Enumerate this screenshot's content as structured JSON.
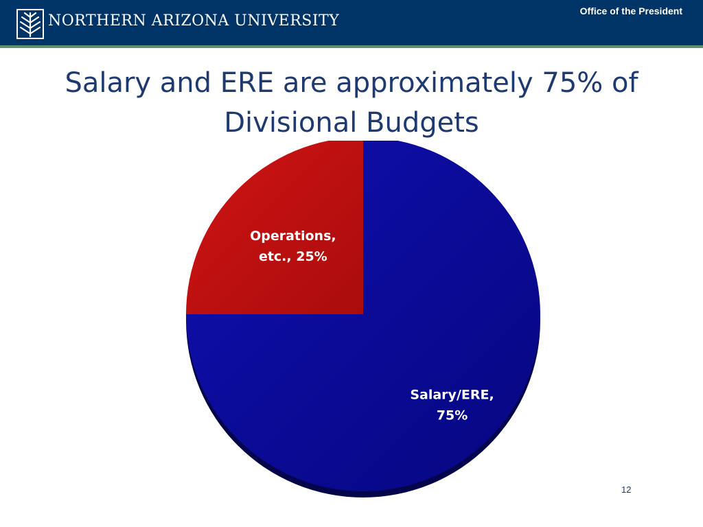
{
  "header": {
    "university": "NORTHERN ARIZONA UNIVERSITY",
    "office": "Office of the President",
    "logo_icon": "nau-pine-logo-icon",
    "bg_color": "#003466",
    "rule_color": "#5b8f73"
  },
  "slide": {
    "title_line1": "Salary and ERE are approximately 75% of",
    "title_line2": "Divisional Budgets",
    "page_number": "12"
  },
  "chart_data": {
    "type": "pie",
    "title": "Salary and ERE are approximately 75% of Divisional Budgets",
    "slices": [
      {
        "label_line1": "Salary/ERE,",
        "label_line2": "75%",
        "value": 75,
        "color": "#0a0a96"
      },
      {
        "label_line1": "Operations,",
        "label_line2": "etc., 25%",
        "value": 25,
        "color": "#c00f0f"
      }
    ]
  }
}
